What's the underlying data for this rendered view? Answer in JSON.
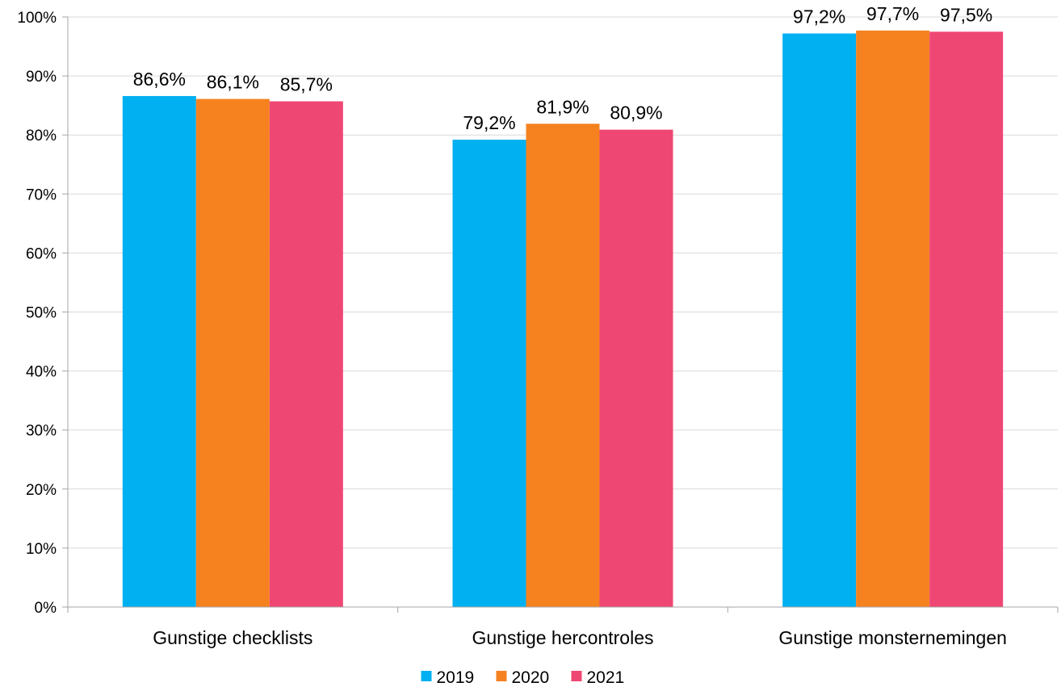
{
  "chart_data": {
    "type": "bar",
    "title": "",
    "xlabel": "",
    "ylabel": "",
    "categories": [
      "Gunstige checklists",
      "Gunstige hercontroles",
      "Gunstige monsternemingen"
    ],
    "series": [
      {
        "name": "2019",
        "color": "#00b0f0",
        "values": [
          86.6,
          79.2,
          97.2
        ],
        "labels": [
          "86,6%",
          "79,2%",
          "97,2%"
        ]
      },
      {
        "name": "2020",
        "color": "#f5821f",
        "values": [
          86.1,
          81.9,
          97.7
        ],
        "labels": [
          "86,1%",
          "81,9%",
          "97,7%"
        ]
      },
      {
        "name": "2021",
        "color": "#ef4773",
        "values": [
          85.7,
          80.9,
          97.5
        ],
        "labels": [
          "85,7%",
          "80,9%",
          "97,5%"
        ]
      }
    ],
    "ylim": [
      0,
      100
    ],
    "yticks": [
      0,
      10,
      20,
      30,
      40,
      50,
      60,
      70,
      80,
      90,
      100
    ],
    "ytick_labels": [
      "0%",
      "10%",
      "20%",
      "30%",
      "40%",
      "50%",
      "60%",
      "70%",
      "80%",
      "90%",
      "100%"
    ],
    "grid": true,
    "legend_position": "bottom"
  }
}
